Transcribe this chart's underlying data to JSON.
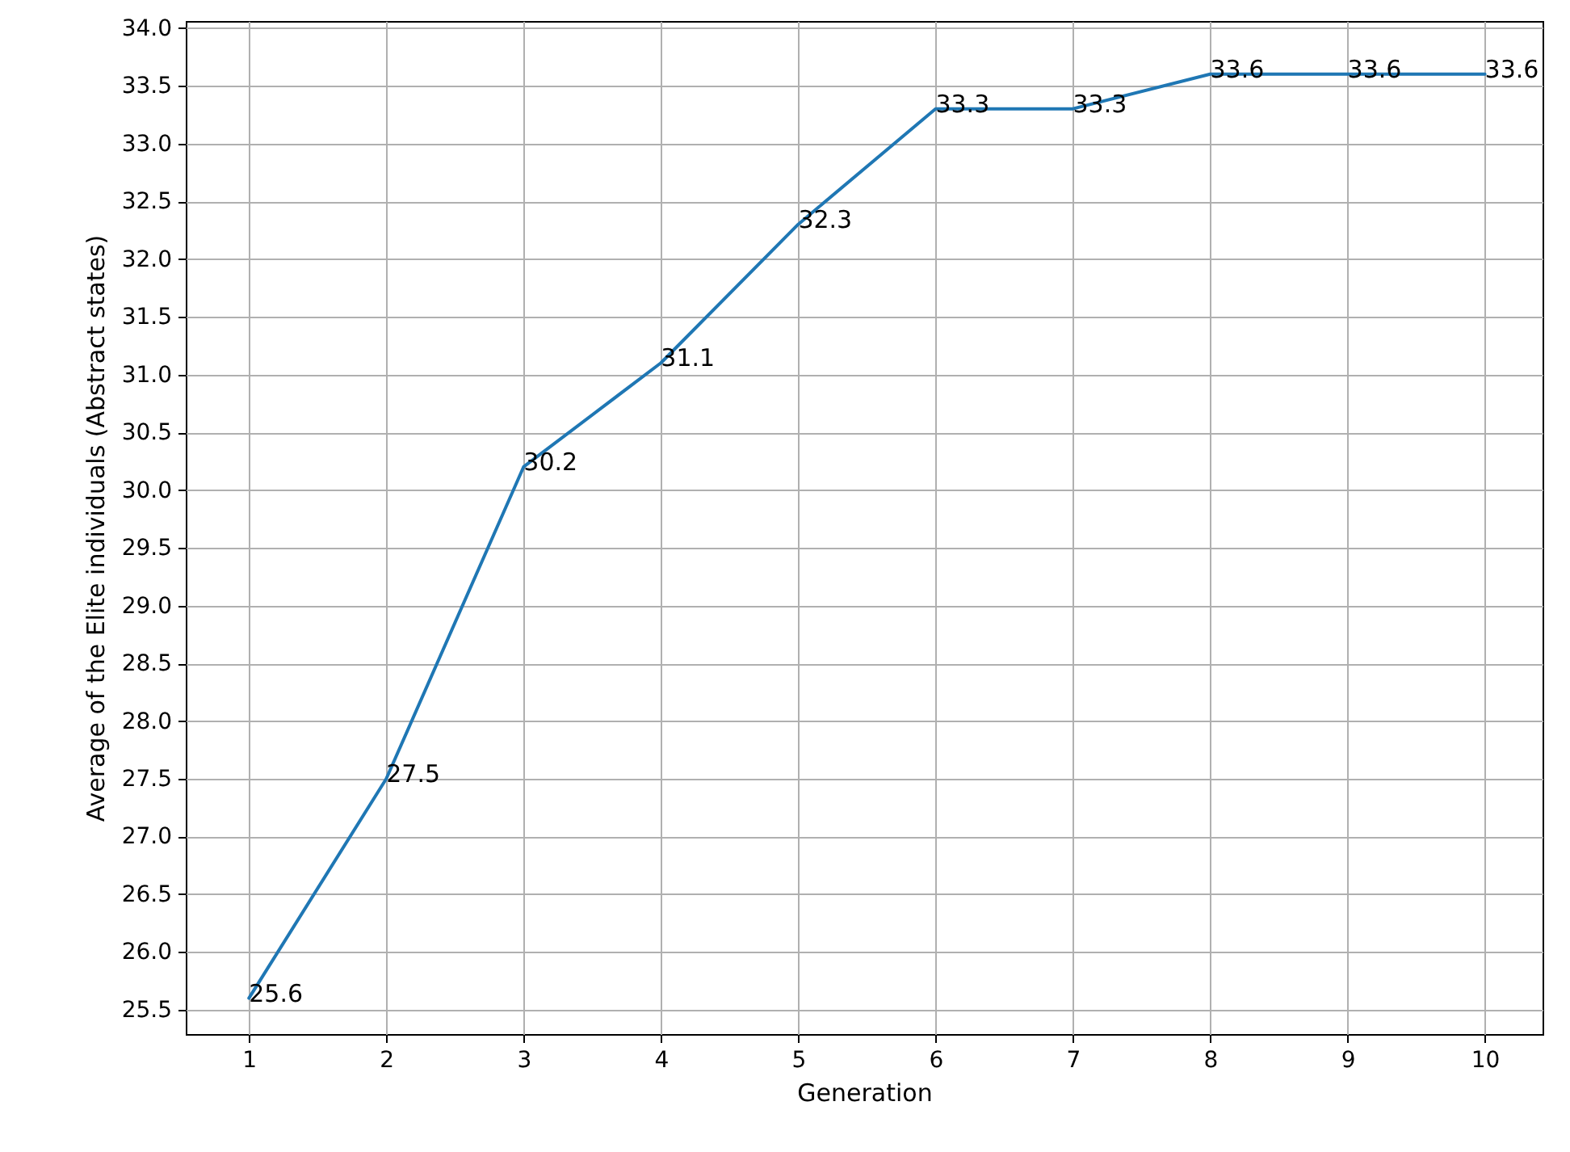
{
  "chart_data": {
    "type": "line",
    "xlabel": "Generation",
    "ylabel": "Average of the Elite individuals (Abstract states)",
    "x": [
      1,
      2,
      3,
      4,
      5,
      6,
      7,
      8,
      9,
      10
    ],
    "series": [
      {
        "color": "#1f77b4",
        "values": [
          25.6,
          27.5,
          30.2,
          31.1,
          32.3,
          33.3,
          33.3,
          33.6,
          33.6,
          33.6
        ]
      }
    ],
    "data_labels": true,
    "grid": true,
    "line_style": "solid",
    "xlim": [
      0.54,
      10.42
    ],
    "xticks": [
      1,
      2,
      3,
      4,
      5,
      6,
      7,
      8,
      9,
      10
    ],
    "ylim": [
      25.29,
      34.06
    ],
    "yticks": [
      25.5,
      {
        "value": 26,
        "label": "26.0"
      },
      26.5,
      {
        "value": 27,
        "label": "27.0"
      },
      27.5,
      {
        "value": 28,
        "label": "28.0"
      },
      28.5,
      {
        "value": 29,
        "label": "29.0"
      },
      29.5,
      {
        "value": 30,
        "label": "30.0"
      },
      30.5,
      {
        "value": 31,
        "label": "31.0"
      },
      31.5,
      {
        "value": 32,
        "label": "32.0"
      },
      32.5,
      {
        "value": 33,
        "label": "33.0"
      },
      33.5,
      {
        "value": 34,
        "label": "34.0"
      }
    ]
  }
}
